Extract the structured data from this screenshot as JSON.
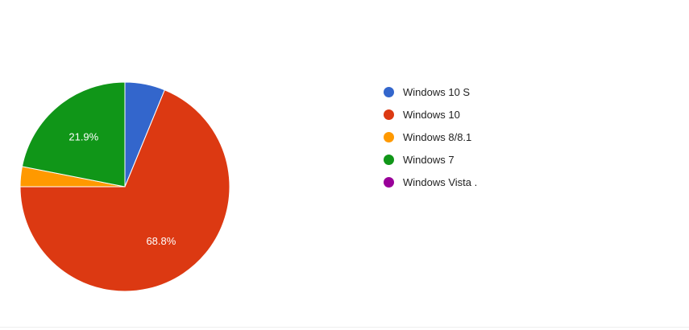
{
  "chart_data": {
    "type": "pie",
    "series": [
      {
        "slices": [
          {
            "label": "Windows 10 S",
            "value": 6.2,
            "color": "#3366cc"
          },
          {
            "label": "Windows 10",
            "value": 68.8,
            "color": "#dc3912",
            "data_label": "68.8%"
          },
          {
            "label": "Windows 8/8.1",
            "value": 3.1,
            "color": "#ff9900"
          },
          {
            "label": "Windows 7",
            "value": 21.9,
            "color": "#109618",
            "data_label": "21.9%"
          },
          {
            "label": "Windows Vista .",
            "value": 0,
            "color": "#990099"
          }
        ]
      }
    ],
    "start_angle_deg": 90,
    "direction": "clockwise-from-top",
    "legend": "right"
  }
}
